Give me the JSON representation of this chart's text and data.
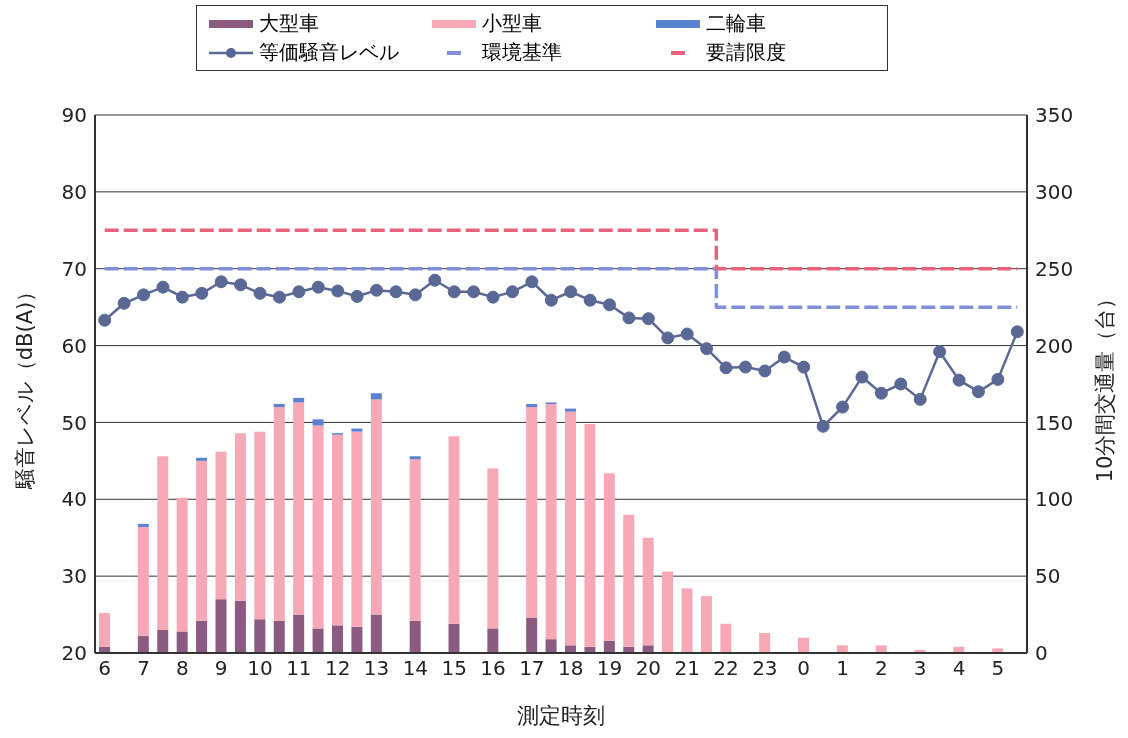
{
  "chart_data": {
    "type": "bar",
    "stacked": true,
    "xlabel": "測定時刻",
    "ylabel": "騒音レベル（dB(A)）",
    "y2label": "10分間交通量（台）",
    "categories": [
      "6",
      null,
      "7",
      null,
      "8",
      null,
      "9",
      null,
      "10",
      null,
      "11",
      null,
      "12",
      null,
      "13",
      null,
      "14",
      null,
      "15",
      null,
      "16",
      null,
      "17",
      null,
      "18",
      null,
      "19",
      null,
      "20",
      null,
      "21",
      null,
      "22",
      null,
      "23",
      null,
      "0",
      null,
      "1",
      null,
      "2",
      null,
      "3",
      null,
      "4",
      null,
      "5",
      null
    ],
    "ylim": [
      20,
      90
    ],
    "yticks": [
      20,
      30,
      40,
      50,
      60,
      70,
      80,
      90
    ],
    "y2lim": [
      0,
      350
    ],
    "y2ticks": [
      0,
      50,
      100,
      150,
      200,
      250,
      300,
      350
    ],
    "grid": "y",
    "legend": "top",
    "series": [
      {
        "name": "大型車",
        "axis": "y2",
        "color": "#8b5a80",
        "values": [
          4,
          null,
          11,
          15,
          14,
          21,
          35,
          34,
          22,
          21,
          25,
          16,
          18,
          17,
          25,
          null,
          21,
          null,
          19,
          null,
          16,
          null,
          23,
          9,
          5,
          4,
          8,
          4,
          5,
          null,
          null,
          null,
          null,
          null,
          null,
          null,
          null,
          null,
          null,
          null,
          null,
          null,
          null,
          null,
          null,
          null,
          null,
          null
        ]
      },
      {
        "name": "小型車",
        "axis": "y2",
        "color": "#f7a8b6",
        "values": [
          22,
          null,
          71,
          113,
          87,
          104,
          96,
          109,
          122,
          139,
          138,
          132,
          124,
          127,
          140,
          null,
          105,
          null,
          122,
          null,
          104,
          null,
          137,
          153,
          152,
          145,
          109,
          86,
          70,
          53,
          42,
          37,
          19,
          null,
          13,
          null,
          10,
          null,
          5,
          null,
          5,
          null,
          2,
          null,
          4,
          null,
          3,
          null
        ]
      },
      {
        "name": "二輪車",
        "axis": "y2",
        "color": "#5b82d0",
        "values": [
          null,
          null,
          2,
          null,
          null,
          2,
          null,
          null,
          null,
          2,
          3,
          4,
          1,
          2,
          4,
          null,
          2,
          null,
          null,
          null,
          null,
          null,
          2,
          1,
          2,
          null,
          null,
          null,
          null,
          null,
          null,
          null,
          null,
          null,
          null,
          null,
          null,
          null,
          null,
          null,
          null,
          null,
          null,
          null,
          null,
          null,
          null,
          null
        ]
      },
      {
        "name": "等価騒音レベル",
        "type": "line",
        "axis": "y",
        "color": "#5a6896",
        "marker": "circle",
        "line_style": "solid",
        "values": [
          63.3,
          65.5,
          66.6,
          67.6,
          66.3,
          66.8,
          68.3,
          67.9,
          66.8,
          66.3,
          67.0,
          67.6,
          67.1,
          66.4,
          67.2,
          67.0,
          66.6,
          68.5,
          67.0,
          67.0,
          66.3,
          67.0,
          68.3,
          65.9,
          67.0,
          65.9,
          65.3,
          63.6,
          63.5,
          61.0,
          61.5,
          59.6,
          57.1,
          57.2,
          56.7,
          58.5,
          57.2,
          49.5,
          52.0,
          55.9,
          53.8,
          55.0,
          53.0,
          59.2,
          55.5,
          54.0,
          55.6,
          61.8
        ]
      },
      {
        "name": "環境基準",
        "type": "step",
        "axis": "y",
        "color": "#8090d8",
        "line_style": "dashed",
        "values": [
          70,
          70,
          70,
          70,
          70,
          70,
          70,
          70,
          70,
          70,
          70,
          70,
          70,
          70,
          70,
          70,
          70,
          70,
          70,
          70,
          70,
          70,
          70,
          70,
          70,
          70,
          70,
          70,
          70,
          70,
          70,
          70,
          65,
          65,
          65,
          65,
          65,
          65,
          65,
          65,
          65,
          65,
          65,
          65,
          65,
          65,
          65,
          65
        ]
      },
      {
        "name": "要請限度",
        "type": "step",
        "axis": "y",
        "color": "#e8627c",
        "line_style": "dashed",
        "values": [
          75,
          75,
          75,
          75,
          75,
          75,
          75,
          75,
          75,
          75,
          75,
          75,
          75,
          75,
          75,
          75,
          75,
          75,
          75,
          75,
          75,
          75,
          75,
          75,
          75,
          75,
          75,
          75,
          75,
          75,
          75,
          75,
          70,
          70,
          70,
          70,
          70,
          70,
          70,
          70,
          70,
          70,
          70,
          70,
          70,
          70,
          70,
          70
        ]
      }
    ]
  }
}
